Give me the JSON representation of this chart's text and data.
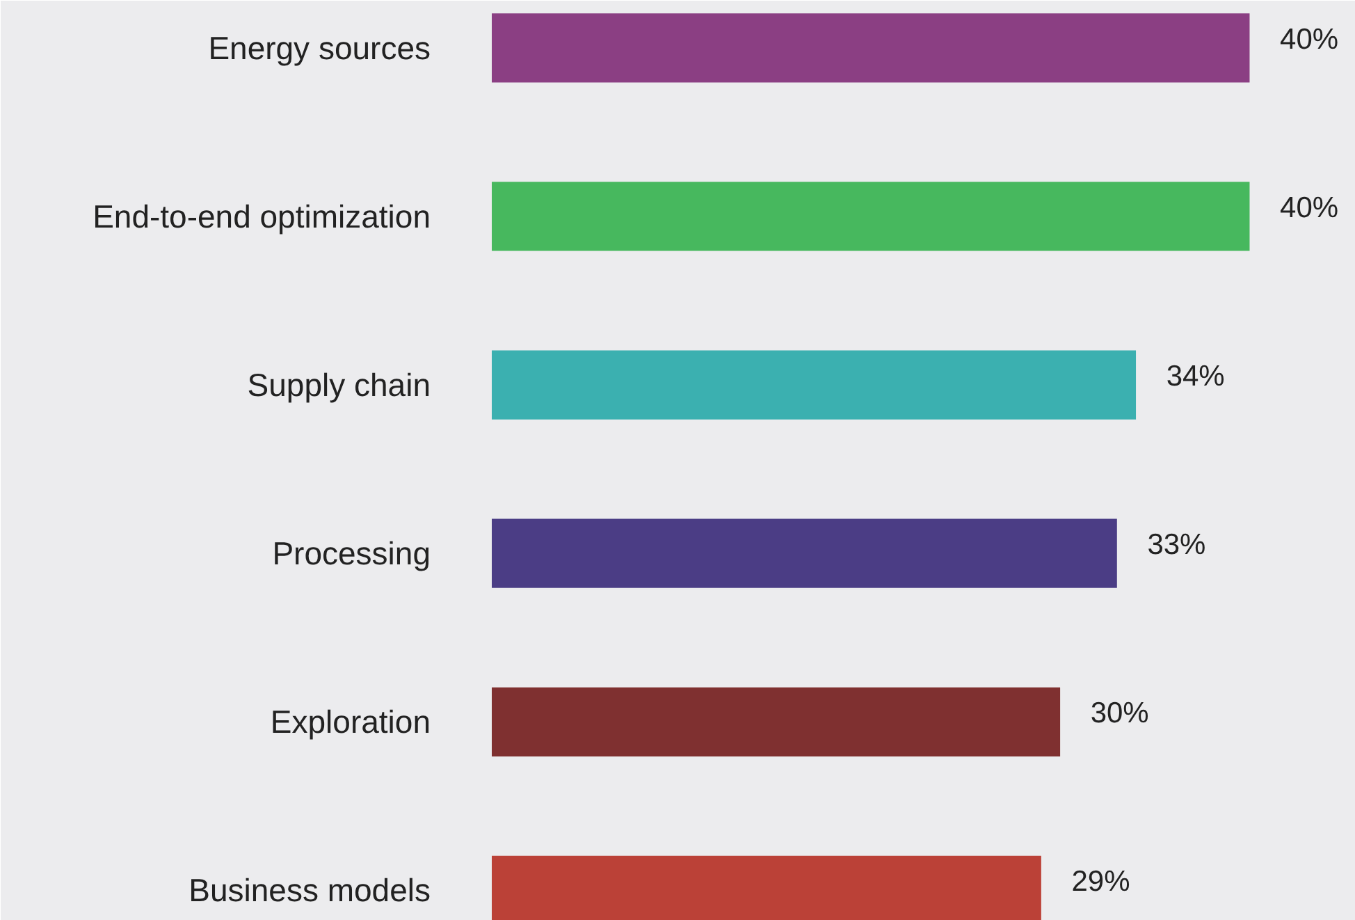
{
  "chart_data": {
    "type": "bar",
    "orientation": "horizontal",
    "categories": [
      "Energy sources",
      "End-to-end optimization",
      "Supply chain",
      "Processing",
      "Exploration",
      "Business models"
    ],
    "values": [
      40,
      40,
      34,
      33,
      30,
      29
    ],
    "colors": [
      "#8b3f83",
      "#47b85e",
      "#3bb0b0",
      "#4b3d85",
      "#7f3030",
      "#bb4137"
    ],
    "value_labels": [
      "40%",
      "40%",
      "34%",
      "33%",
      "30%",
      "29%"
    ],
    "grid": false
  }
}
